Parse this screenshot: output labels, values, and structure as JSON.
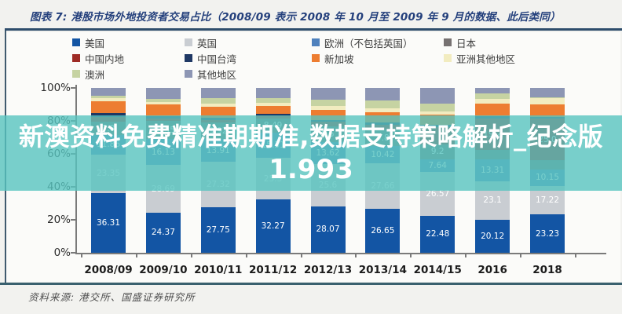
{
  "figure": {
    "title": "图表 7: 港股市场外地投资者交易占比（2008/09 表示 2008 年 10 月至 2009 年 9 月的数据、此后类同）",
    "source": "资料来源: 港交所、国盛证券研究所"
  },
  "overlay": {
    "line1": "新澳资料免费精准期期准,数据支持策略解析_纪念版",
    "line2": "1.993",
    "band_color": "#58c4bf"
  },
  "chart_data": {
    "type": "bar",
    "stacked": true,
    "unit": "%",
    "ylim": [
      0,
      100
    ],
    "grid": false,
    "legend_position": "top",
    "y_ticks": [
      "0%",
      "20%",
      "40%",
      "60%",
      "80%",
      "100%"
    ],
    "categories": [
      "2008/09",
      "2009/10",
      "2010/11",
      "2011/12",
      "2012/13",
      "2013/14",
      "2014/15",
      "2016",
      "2018"
    ],
    "series": [
      {
        "name": "美国",
        "color": "#1355a4",
        "values": [
          36.31,
          24.37,
          27.75,
          32.27,
          28.07,
          26.65,
          22.48,
          20.12,
          23.23
        ]
      },
      {
        "name": "英国",
        "color": "#c9cdd2",
        "values": [
          23.35,
          28.69,
          27.32,
          25.3,
          25.6,
          27.66,
          26.57,
          23.1,
          17.22
        ]
      },
      {
        "name": "欧洲（不包括英国）",
        "color": "#4f81bd",
        "values": [
          11.86,
          16.13,
          13.91,
          15.31,
          13.62,
          10.42,
          7.64,
          13.31,
          10.15
        ]
      },
      {
        "name": "日本",
        "color": "#767171",
        "values": [
          7.8,
          10.55,
          9.92,
          8.49,
          9.5,
          9.8,
          9.2,
          5.8,
          5.6
        ]
      },
      {
        "name": "中国内地",
        "color": "#9e2b25",
        "values": [
          3.2,
          1.8,
          1.6,
          1.5,
          2.5,
          3.0,
          10.5,
          19.2,
          25.0
        ]
      },
      {
        "name": "中国台湾",
        "color": "#1f3864",
        "values": [
          2.3,
          1.5,
          1.4,
          1.2,
          1.4,
          1.4,
          1.4,
          1.3,
          1.0
        ]
      },
      {
        "name": "新加坡",
        "color": "#ed7d31",
        "values": [
          7.2,
          6.8,
          6.5,
          5.2,
          6.0,
          6.2,
          5.8,
          7.8,
          7.8
        ]
      },
      {
        "name": "亚洲其他地区",
        "color": "#f2ecc0",
        "values": [
          1.8,
          1.7,
          2.1,
          1.6,
          2.2,
          2.4,
          2.2,
          2.6,
          3.6
        ]
      },
      {
        "name": "澳洲",
        "color": "#c6d3a2",
        "values": [
          1.5,
          2.0,
          3.3,
          3.1,
          4.2,
          4.8,
          4.6,
          3.2,
          0.6
        ]
      },
      {
        "name": "其他地区",
        "color": "#8d96b4",
        "values": [
          4.68,
          6.46,
          6.2,
          6.03,
          6.91,
          7.67,
          9.61,
          3.57,
          5.8
        ]
      }
    ]
  }
}
